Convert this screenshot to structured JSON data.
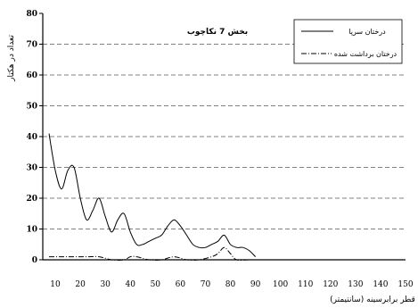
{
  "chart_data": {
    "type": "line",
    "title": "بخش 7 نکاچوب",
    "xlabel": "قطر برابرسینه (سانتیمتر)",
    "ylabel": "تعداد در هکتار",
    "xlim": [
      5,
      150
    ],
    "ylim": [
      0,
      80
    ],
    "x_ticks": [
      10,
      20,
      30,
      40,
      50,
      60,
      70,
      80,
      90,
      100,
      110,
      120,
      130,
      140,
      150
    ],
    "y_ticks": [
      0,
      10,
      20,
      30,
      40,
      50,
      60,
      70,
      80
    ],
    "grid": "horizontal-dashed",
    "legend_position": "top-right",
    "series": [
      {
        "name": "درختان سرپا",
        "style": "solid",
        "x": [
          7.5,
          10,
          12.5,
          15,
          17.5,
          20,
          22.5,
          25,
          27.5,
          30,
          32.5,
          35,
          37.5,
          40,
          42.5,
          45,
          47.5,
          50,
          52.5,
          55,
          57.5,
          60,
          62.5,
          65,
          67.5,
          70,
          72.5,
          75,
          77.5,
          80,
          82.5,
          85,
          87.5,
          90
        ],
        "values": [
          41,
          29,
          23,
          29,
          30,
          20,
          13,
          16,
          20,
          14,
          9,
          13,
          15,
          9,
          5,
          5,
          6,
          7,
          8,
          11,
          13,
          11,
          8,
          5,
          4,
          4,
          5,
          6,
          8,
          5,
          4,
          4,
          3,
          1
        ]
      },
      {
        "name": "درختان برداشت شده",
        "style": "dash-dot",
        "x": [
          7.5,
          12.5,
          17.5,
          22.5,
          27.5,
          32.5,
          37.5,
          40,
          42.5,
          47.5,
          52.5,
          57.5,
          62.5,
          67.5,
          72.5,
          75,
          77.5,
          80,
          82.5,
          87.5
        ],
        "values": [
          1,
          1,
          1,
          1,
          1,
          0,
          0,
          1,
          1,
          0,
          0,
          1,
          0,
          0,
          1,
          2,
          4,
          2,
          0,
          0
        ]
      }
    ]
  }
}
